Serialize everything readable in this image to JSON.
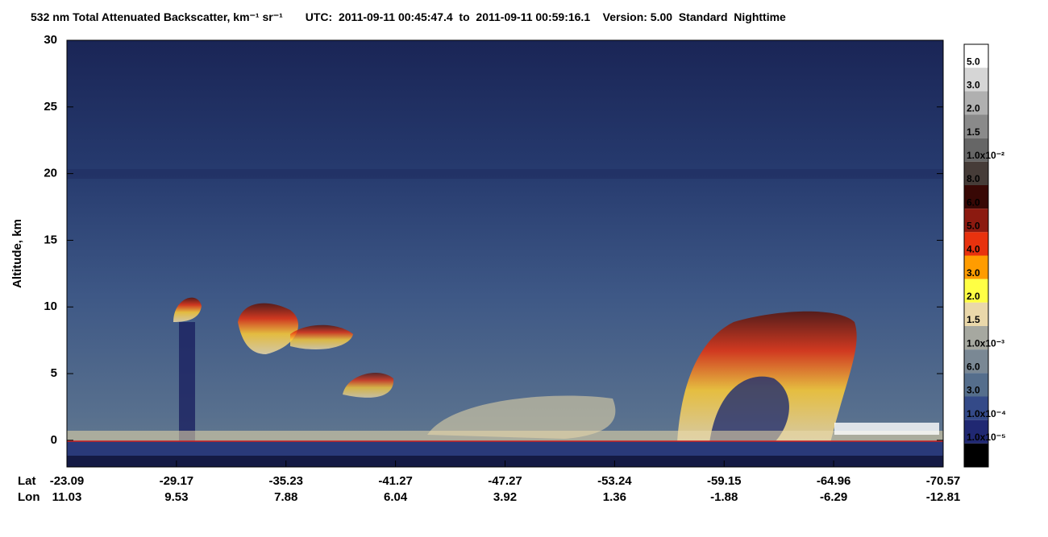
{
  "chart_data": {
    "type": "heatmap",
    "title": "532 nm Total Attenuated Backscatter, km⁻¹ sr⁻¹",
    "subtitle": "UTC:  2011-09-11 00:45:47.4  to  2011-09-11 00:59:16.1    Version: 5.00  Standard  Nighttime",
    "y_label": "Altitude, km",
    "ylim": [
      -2,
      30
    ],
    "yticks": [
      0,
      5,
      10,
      15,
      20,
      25,
      30
    ],
    "x_rows": [
      {
        "label": "Lat",
        "values": [
          -23.09,
          -29.17,
          -35.23,
          -41.27,
          -47.27,
          -53.24,
          -59.15,
          -64.96,
          -70.57
        ]
      },
      {
        "label": "Lon",
        "values": [
          11.03,
          9.53,
          7.88,
          6.04,
          3.92,
          1.36,
          -1.88,
          -6.29,
          -12.81
        ]
      }
    ],
    "colorbar": {
      "colors": [
        "#ffffff",
        "#d6d6d6",
        "#b0b0b0",
        "#8a8a8a",
        "#666666",
        "#463c38",
        "#380805",
        "#8c1a10",
        "#e8320e",
        "#ff9c00",
        "#ffff44",
        "#ead8aa",
        "#a6a8a0",
        "#7a8894",
        "#556e8c",
        "#344a88",
        "#202872",
        "#000000"
      ],
      "labels": [
        "5.0",
        "3.0",
        "2.0",
        "1.5",
        "1.0x10⁻²",
        "8.0",
        "6.0",
        "5.0",
        "4.0",
        "3.0",
        "2.0",
        "1.5",
        "1.0x10⁻³",
        "6.0",
        "3.0",
        "1.0x10⁻⁴",
        "1.0x10⁻⁵"
      ]
    }
  }
}
